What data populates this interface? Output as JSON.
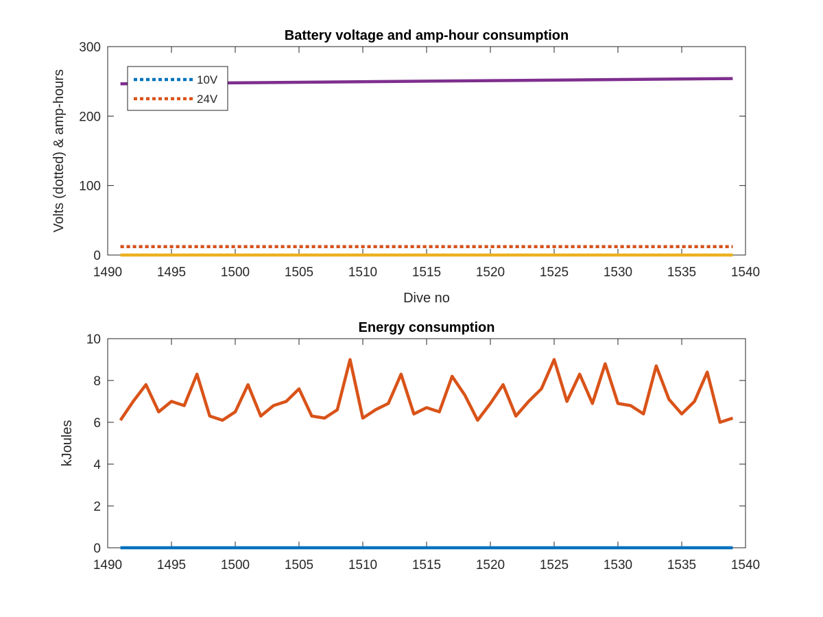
{
  "chart_data": [
    {
      "type": "line",
      "title": "Battery voltage and amp-hour consumption",
      "xlabel": "Dive no",
      "ylabel": "Volts (dotted) & amp-hours",
      "xlim": [
        1490,
        1540
      ],
      "ylim": [
        0,
        300
      ],
      "xticks": [
        1490,
        1495,
        1500,
        1505,
        1510,
        1515,
        1520,
        1525,
        1530,
        1535,
        1540
      ],
      "yticks": [
        0,
        100,
        200,
        300
      ],
      "legend_position": "top-left",
      "series": [
        {
          "name": "10V",
          "style": "dotted",
          "color": "#0072BD",
          "x": [
            1491,
            1539
          ],
          "y": [
            12,
            12
          ]
        },
        {
          "name": "24V",
          "style": "dotted",
          "color": "#D95319",
          "x": [
            1491,
            1539
          ],
          "y": [
            12,
            12
          ]
        },
        {
          "style": "solid",
          "color": "#EDB120",
          "x": [
            1491,
            1539
          ],
          "y": [
            0,
            0
          ]
        },
        {
          "style": "solid",
          "color": "#7E2F8E",
          "x": [
            1491,
            1539
          ],
          "y": [
            246.5,
            254
          ]
        }
      ]
    },
    {
      "type": "line",
      "title": "Energy consumption",
      "xlabel": "",
      "ylabel": "kJoules",
      "xlim": [
        1490,
        1540
      ],
      "ylim": [
        0,
        10
      ],
      "xticks": [
        1490,
        1495,
        1500,
        1505,
        1510,
        1515,
        1520,
        1525,
        1530,
        1535,
        1540
      ],
      "yticks": [
        0,
        2,
        4,
        6,
        8,
        10
      ],
      "series": [
        {
          "style": "solid",
          "color": "#D95319",
          "x": [
            1491,
            1492,
            1493,
            1494,
            1495,
            1496,
            1497,
            1498,
            1499,
            1500,
            1501,
            1502,
            1503,
            1504,
            1505,
            1506,
            1507,
            1508,
            1509,
            1510,
            1511,
            1512,
            1513,
            1514,
            1515,
            1516,
            1517,
            1518,
            1519,
            1520,
            1521,
            1522,
            1523,
            1524,
            1525,
            1526,
            1527,
            1528,
            1529,
            1530,
            1531,
            1532,
            1533,
            1534,
            1535,
            1536,
            1537,
            1538,
            1539
          ],
          "y": [
            6.1,
            7.0,
            7.8,
            6.5,
            7.0,
            6.8,
            8.3,
            6.3,
            6.1,
            6.5,
            7.8,
            6.3,
            6.8,
            7.0,
            7.6,
            6.3,
            6.2,
            6.6,
            9.0,
            6.2,
            6.6,
            6.9,
            8.3,
            6.4,
            6.7,
            6.5,
            8.2,
            7.3,
            6.1,
            6.9,
            7.8,
            6.3,
            7.0,
            7.6,
            9.0,
            7.0,
            8.3,
            6.9,
            8.8,
            6.9,
            6.8,
            6.4,
            8.7,
            7.1,
            6.4,
            7.0,
            8.4,
            6.0,
            6.2
          ]
        },
        {
          "style": "solid",
          "color": "#0072BD",
          "x": [
            1491,
            1539
          ],
          "y": [
            0,
            0
          ]
        }
      ]
    }
  ]
}
